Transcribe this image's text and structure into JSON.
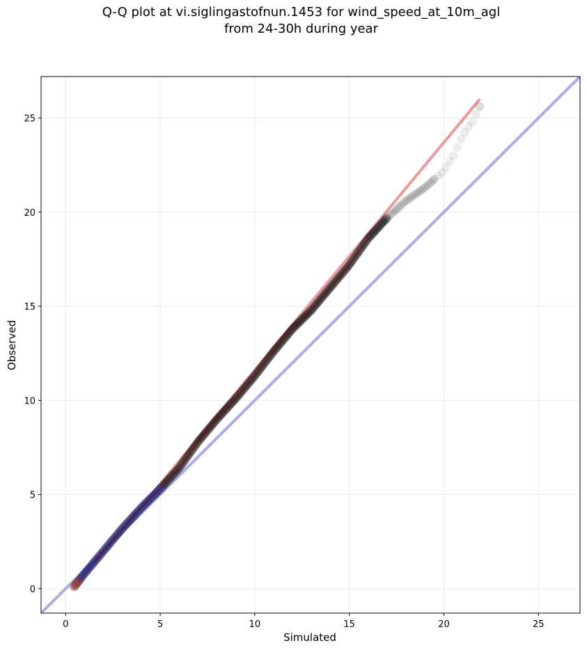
{
  "chart_data": {
    "type": "scatter",
    "title_lines": [
      "Q-Q plot at vi.siglingastofnun.1453 for wind_speed_at_10m_agl",
      "from 24-30h during year"
    ],
    "xlabel": "Simulated",
    "ylabel": "Observed",
    "xlim": [
      -1.3,
      27.2
    ],
    "ylim": [
      -1.3,
      27.2
    ],
    "xticks": [
      0,
      5,
      10,
      15,
      20,
      25
    ],
    "yticks": [
      0,
      5,
      10,
      15,
      20,
      25
    ],
    "grid": true,
    "colors": {
      "points": "#000000",
      "reference_line": "#aaaaee",
      "fit_line": "#ee9999",
      "fit_line_inner": "#8b0000",
      "low_tail": "#1a237e"
    },
    "reference_line": {
      "name": "1:1",
      "x": [
        -1.3,
        27.2
      ],
      "y": [
        -1.3,
        27.2
      ]
    },
    "fit_line": {
      "x": [
        0.4,
        21.9
      ],
      "y": [
        0.0,
        26.0
      ]
    },
    "qq_curve_knots": {
      "x": [
        0.45,
        1.0,
        2.0,
        3.0,
        4.0,
        5.0,
        6.0,
        7.0,
        8.0,
        9.0,
        10.0,
        11.0,
        12.0,
        13.0,
        14.0,
        15.0,
        16.0,
        17.0,
        18.0,
        19.0,
        20.0,
        20.5,
        21.0,
        21.5,
        21.9
      ],
      "y": [
        0.1,
        0.8,
        2.0,
        3.2,
        4.3,
        5.3,
        6.4,
        7.8,
        9.0,
        10.1,
        11.3,
        12.6,
        13.8,
        14.8,
        16.0,
        17.2,
        18.6,
        19.7,
        20.6,
        21.3,
        22.2,
        23.0,
        24.1,
        24.8,
        25.6
      ]
    }
  }
}
